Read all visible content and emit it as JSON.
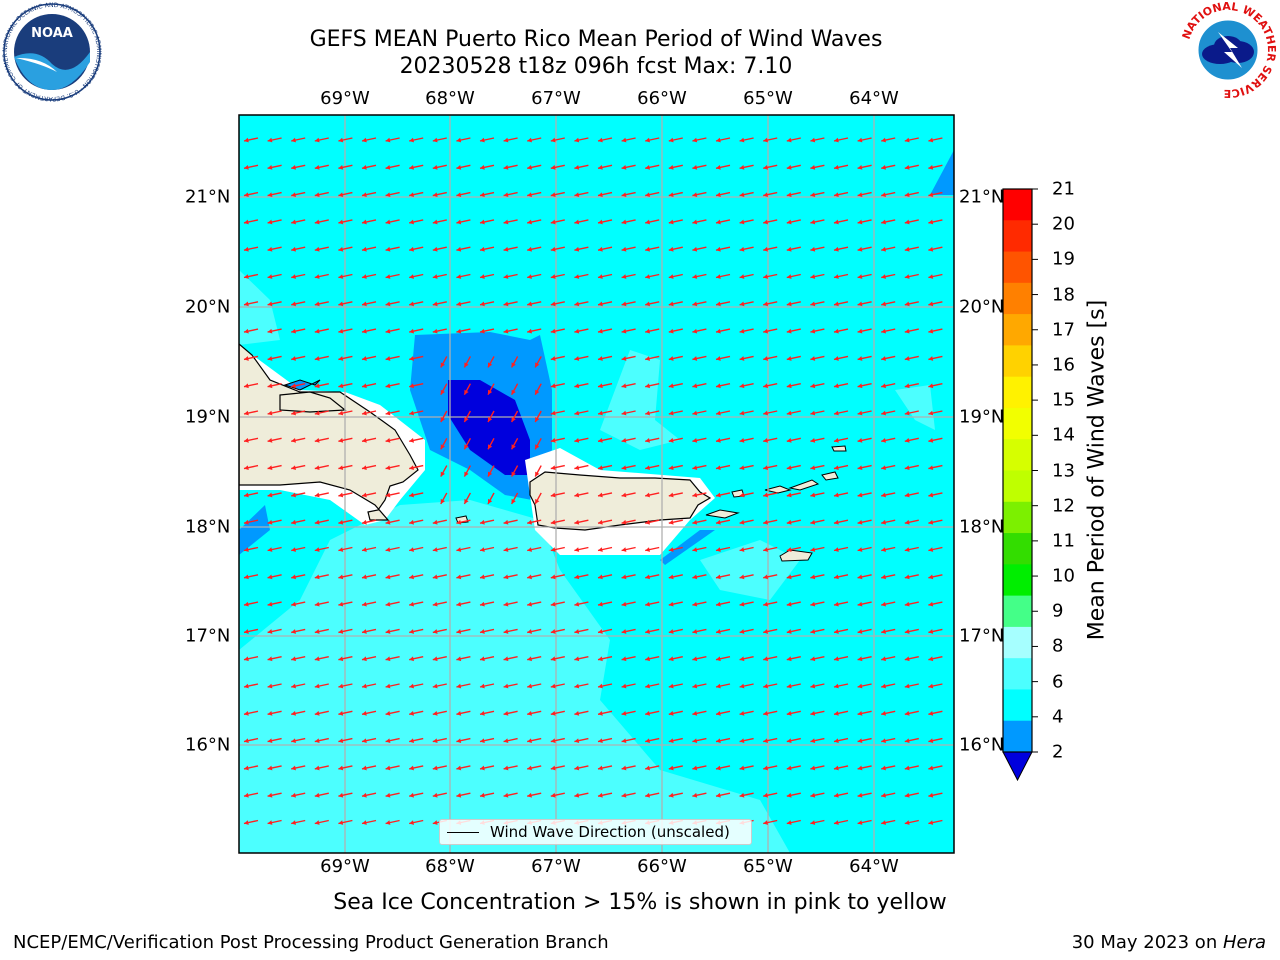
{
  "title_line1": "GEFS MEAN Puerto Rico Mean Period of Wind Waves",
  "title_line2": "20230528 t18z 096h fcst   Max: 7.10",
  "lon_labels": [
    "69°W",
    "68°W",
    "67°W",
    "66°W",
    "65°W",
    "64°W"
  ],
  "lat_labels": [
    "21°N",
    "20°N",
    "19°N",
    "18°N",
    "17°N",
    "16°N"
  ],
  "colorbar": {
    "title": "Mean Period of Wind Waves [s]",
    "ticks": [
      "21",
      "20",
      "19",
      "18",
      "17",
      "16",
      "15",
      "14",
      "13",
      "12",
      "11",
      "10",
      "9",
      "8",
      "6",
      "4",
      "2"
    ],
    "colors": [
      "#ff0000",
      "#ff2a00",
      "#ff5400",
      "#ff8000",
      "#ffa800",
      "#ffd200",
      "#fff200",
      "#f2ff00",
      "#d6ff00",
      "#bfff00",
      "#7cf000",
      "#33dd00",
      "#00ee00",
      "#44ff88",
      "#a6ffff",
      "#4cffff",
      "#00ffff",
      "#0099ff",
      "#0000dd"
    ]
  },
  "legend_label": "Wind Wave Direction (unscaled)",
  "ice_note": "Sea Ice Concentration > 15% is shown in pink to yellow",
  "credit": "NCEP/EMC/Verification Post Processing Product Generation Branch",
  "date_text": "30 May 2023 on ",
  "date_host": "Hera",
  "noaa_logo_text": "NOAA",
  "noaa_ring_text": "NATIONAL OCEANIC AND ATMOSPHERIC ADMINISTRATION · U.S. DEPARTMENT OF COMMERCE",
  "nws_ring_text": "NATIONAL WEATHER SERVICE"
}
